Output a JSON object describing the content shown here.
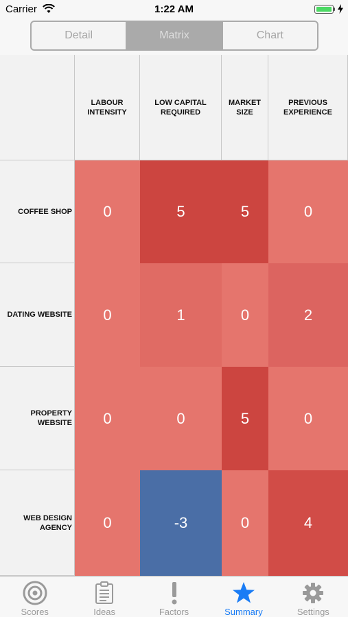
{
  "status_bar": {
    "carrier": "Carrier",
    "time": "1:22 AM"
  },
  "segmented": {
    "items": [
      {
        "label": "Detail"
      },
      {
        "label": "Matrix"
      },
      {
        "label": "Chart"
      }
    ],
    "selected": "Matrix"
  },
  "matrix": {
    "columns": [
      "LABOUR\nINTENSITY",
      "LOW CAPITAL\nREQUIRED",
      "MARKET\nSIZE",
      "PREVIOUS\nEXPERIENCE"
    ],
    "rows": [
      {
        "label": "COFFEE SHOP",
        "values": [
          0,
          5,
          5,
          0
        ]
      },
      {
        "label": "DATING WEBSITE",
        "values": [
          0,
          1,
          0,
          2
        ]
      },
      {
        "label": "PROPERTY\nWEBSITE",
        "values": [
          0,
          0,
          5,
          0
        ]
      },
      {
        "label": "WEB DESIGN\nAGENCY",
        "values": [
          0,
          -3,
          0,
          4
        ]
      }
    ],
    "colors": {
      "zero": "#e5756d",
      "low": "#e06b64",
      "mid": "#dc6460",
      "high": "#cc4540",
      "mid_high": "#d14c47",
      "negative": "#4a6ea6"
    }
  },
  "tabbar": {
    "items": [
      {
        "label": "Scores",
        "icon": "target-icon"
      },
      {
        "label": "Ideas",
        "icon": "clipboard-icon"
      },
      {
        "label": "Factors",
        "icon": "exclamation-icon"
      },
      {
        "label": "Summary",
        "icon": "star-icon"
      },
      {
        "label": "Settings",
        "icon": "gear-icon"
      }
    ],
    "selected": "Summary",
    "accent": "#1a7cf5",
    "inactive": "#9a9a9a"
  }
}
